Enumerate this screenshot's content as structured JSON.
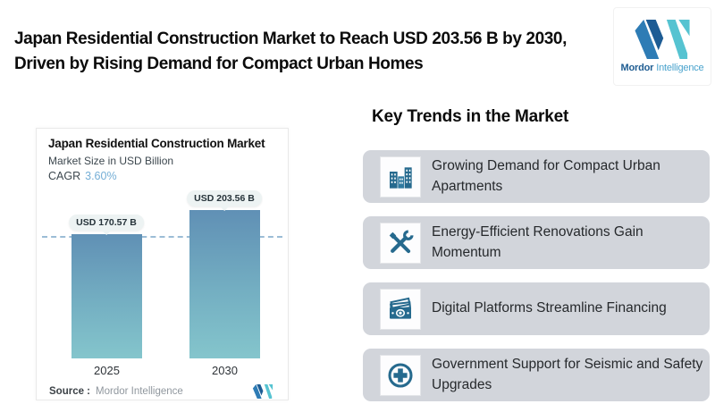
{
  "header": {
    "title": "Japan Residential Construction Market to Reach USD 203.56 B by 2030, Driven by Rising Demand for Compact Urban Homes",
    "logo": {
      "brand_bold": "Mordor",
      "brand_light": "Intelligence"
    }
  },
  "chart_card": {
    "title": "Japan Residential Construction Market",
    "subtitle": "Market Size in USD Billion",
    "cagr_label": "CAGR",
    "cagr_value": "3.60%",
    "source_label": "Source :",
    "source_value": "Mordor Intelligence"
  },
  "chart_data": {
    "type": "bar",
    "title": "Japan Residential Construction Market",
    "subtitle": "Market Size in USD Billion",
    "cagr": "3.60%",
    "unit": "USD Billion",
    "categories": [
      "2025",
      "2030"
    ],
    "values": [
      170.57,
      203.56
    ],
    "value_labels": [
      "USD 170.57 B",
      "USD 203.56 B"
    ],
    "ylim": [
      0,
      210
    ],
    "grid": "single horizontal dashed reference line at 170.57",
    "legend": "none",
    "bar_gradient_top": "#6090b5",
    "bar_gradient_bottom": "#84c5cc",
    "reference_line_color": "#9cbdd6"
  },
  "trends": {
    "heading": "Key Trends in the Market",
    "items": [
      {
        "icon": "buildings-icon",
        "label": "Growing Demand for Compact Urban Apartments"
      },
      {
        "icon": "tools-icon",
        "label": "Energy-Efficient Renovations Gain Momentum"
      },
      {
        "icon": "banknotes-icon",
        "label": "Digital Platforms Streamline Financing"
      },
      {
        "icon": "plus-circle-icon",
        "label": "Government Support for Seismic and Safety Upgrades"
      }
    ]
  },
  "colors": {
    "accent_blue": "#2e7cb5",
    "accent_dark_blue": "#1d5c94",
    "accent_teal": "#56c3d1",
    "icon_teal": "#266a8e",
    "trend_card_bg": "#d2d5db",
    "cagr_value": "#74aed6"
  }
}
